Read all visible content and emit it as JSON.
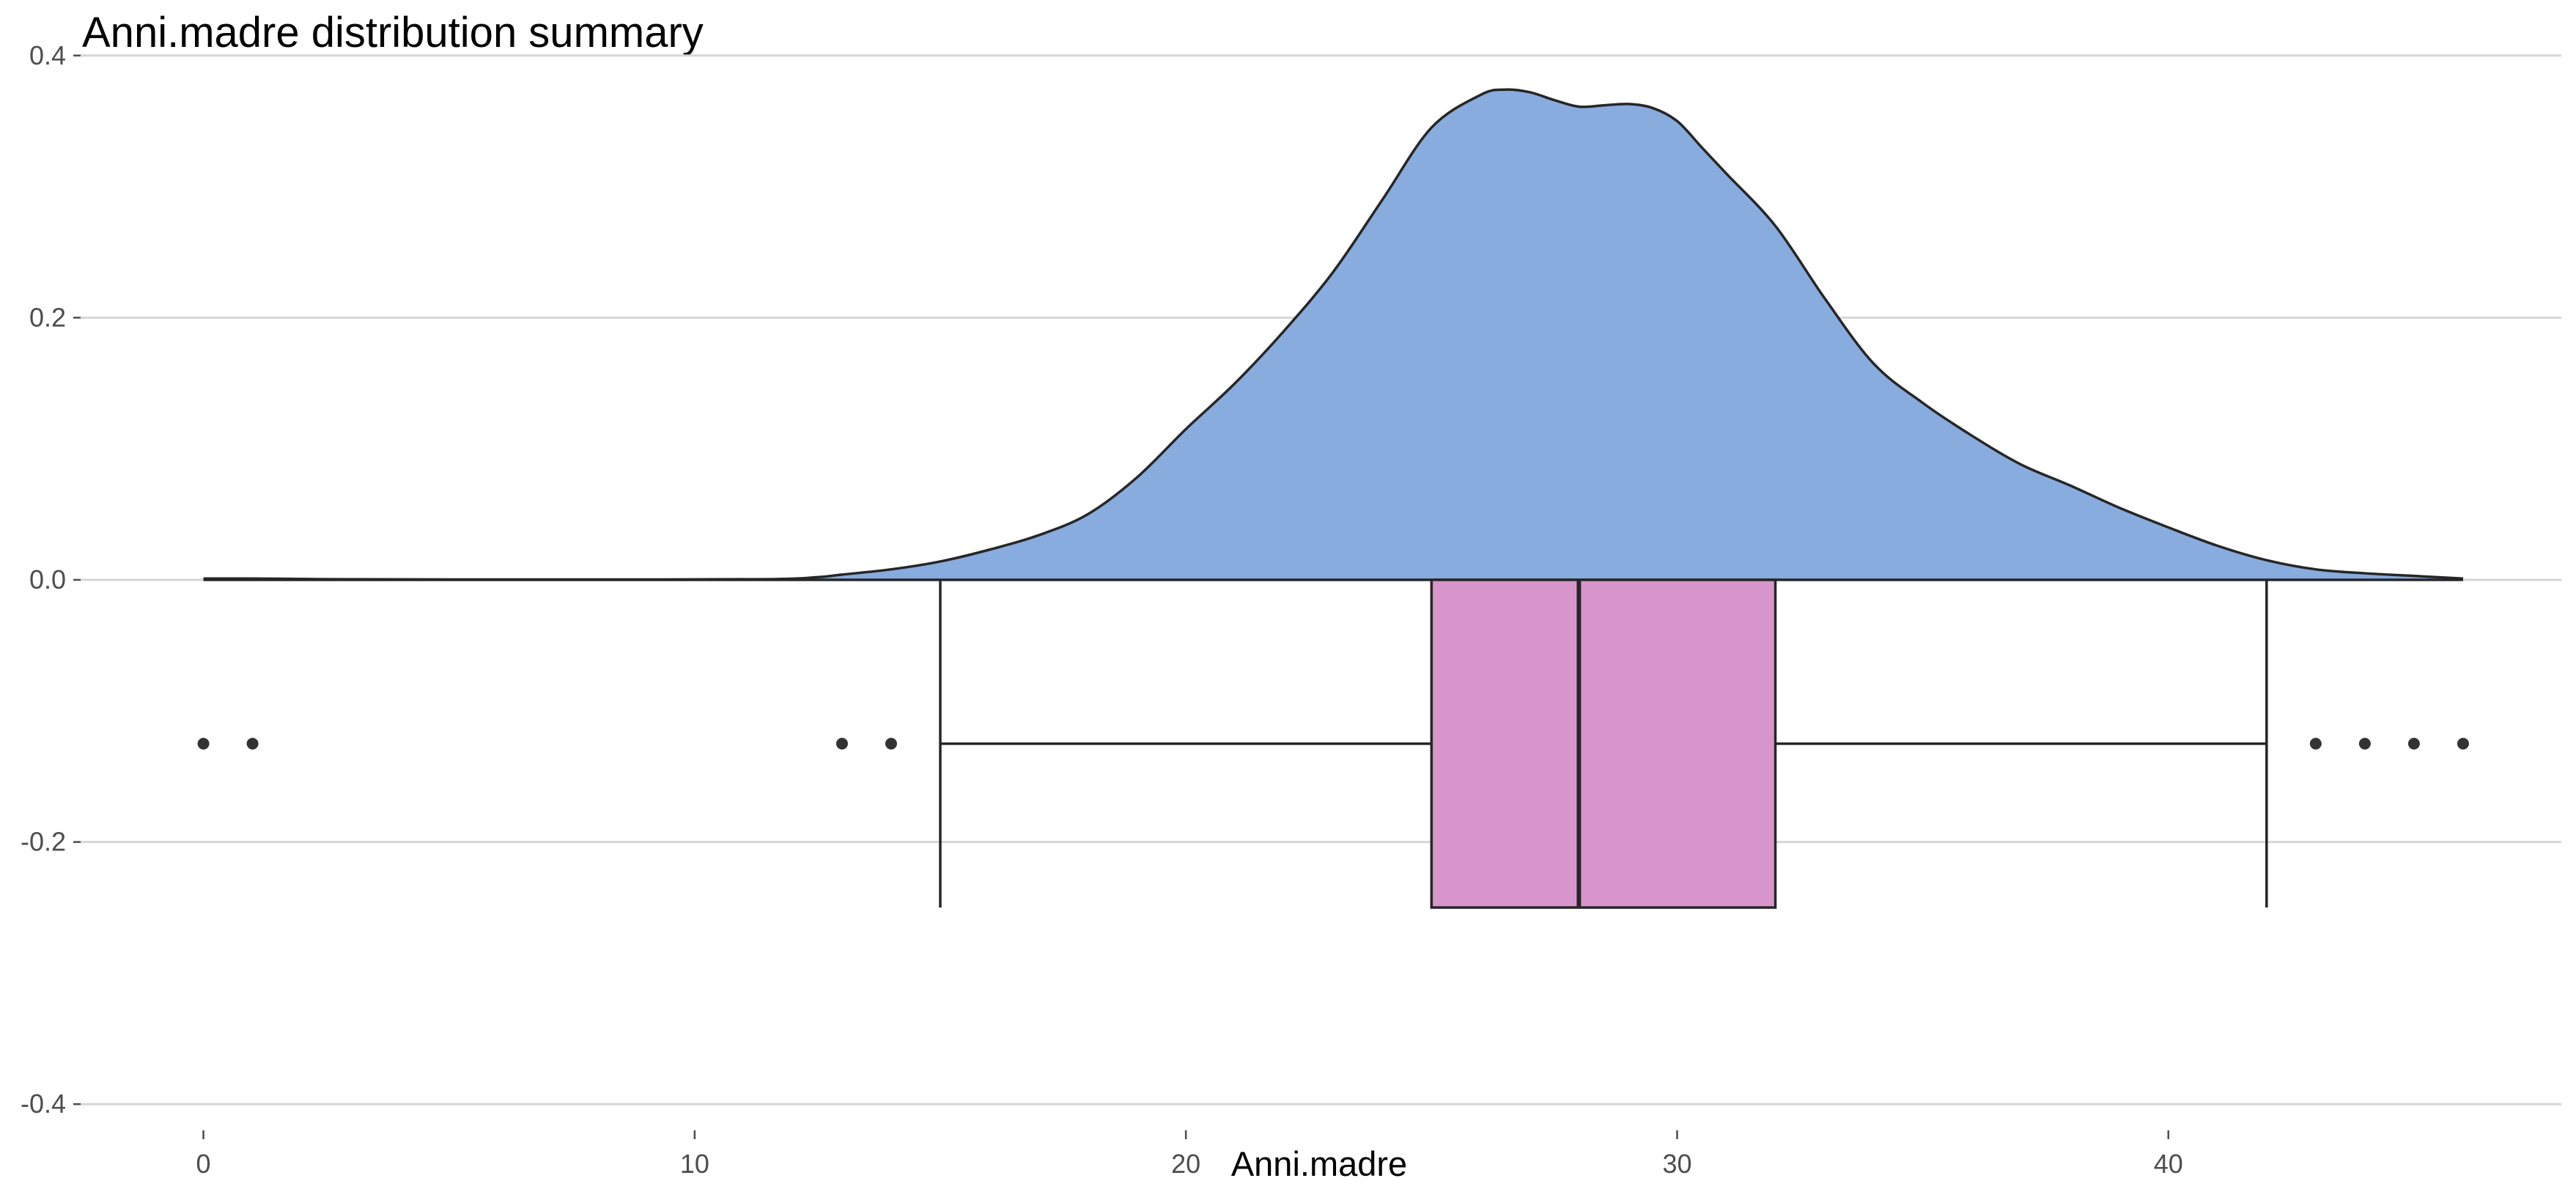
{
  "chart_data": {
    "type": "density_boxplot",
    "title": "Anni.madre distribution summary",
    "xlabel": "Anni.madre",
    "ylabel": "",
    "xlim": [
      -2.5,
      48
    ],
    "ylim": [
      -0.42,
      0.42
    ],
    "x_ticks": [
      0,
      10,
      20,
      30,
      40
    ],
    "y_ticks": [
      -0.4,
      -0.2,
      0.0,
      0.2,
      0.4
    ],
    "y_tick_labels": [
      "-0.4",
      "-0.2",
      "0.0",
      "0.2",
      "0.4"
    ],
    "grid": "horizontal",
    "colors": {
      "density_fill": "#89acdf",
      "box_fill": "#d895cb",
      "outline": "#262626"
    },
    "density": {
      "x": [
        0,
        1,
        2.5,
        5,
        8,
        11.5,
        12.5,
        13,
        14,
        15,
        16,
        17,
        18,
        19,
        20,
        21,
        22,
        23,
        24,
        25,
        26,
        26.5,
        27,
        27.5,
        28,
        28.5,
        29,
        29.5,
        30,
        30.5,
        31,
        32,
        33,
        34,
        35,
        36,
        37,
        38,
        39,
        40,
        41,
        42,
        43,
        44,
        45,
        46
      ],
      "y": [
        0.001,
        0.001,
        0.0005,
        0.0003,
        0.0003,
        0.0005,
        0.002,
        0.004,
        0.008,
        0.014,
        0.023,
        0.034,
        0.05,
        0.078,
        0.115,
        0.15,
        0.19,
        0.235,
        0.29,
        0.345,
        0.37,
        0.374,
        0.372,
        0.366,
        0.361,
        0.362,
        0.363,
        0.36,
        0.35,
        0.33,
        0.31,
        0.27,
        0.215,
        0.165,
        0.135,
        0.11,
        0.088,
        0.072,
        0.055,
        0.04,
        0.026,
        0.015,
        0.008,
        0.005,
        0.003,
        0.001
      ]
    },
    "boxplot": {
      "y_center": -0.125,
      "y_top": 0.0,
      "y_bottom": -0.25,
      "whisker_low": 15,
      "q1": 25,
      "median": 28,
      "q3": 32,
      "whisker_high": 42,
      "outliers": [
        0,
        1,
        13,
        14,
        43,
        44,
        45,
        46
      ]
    }
  }
}
